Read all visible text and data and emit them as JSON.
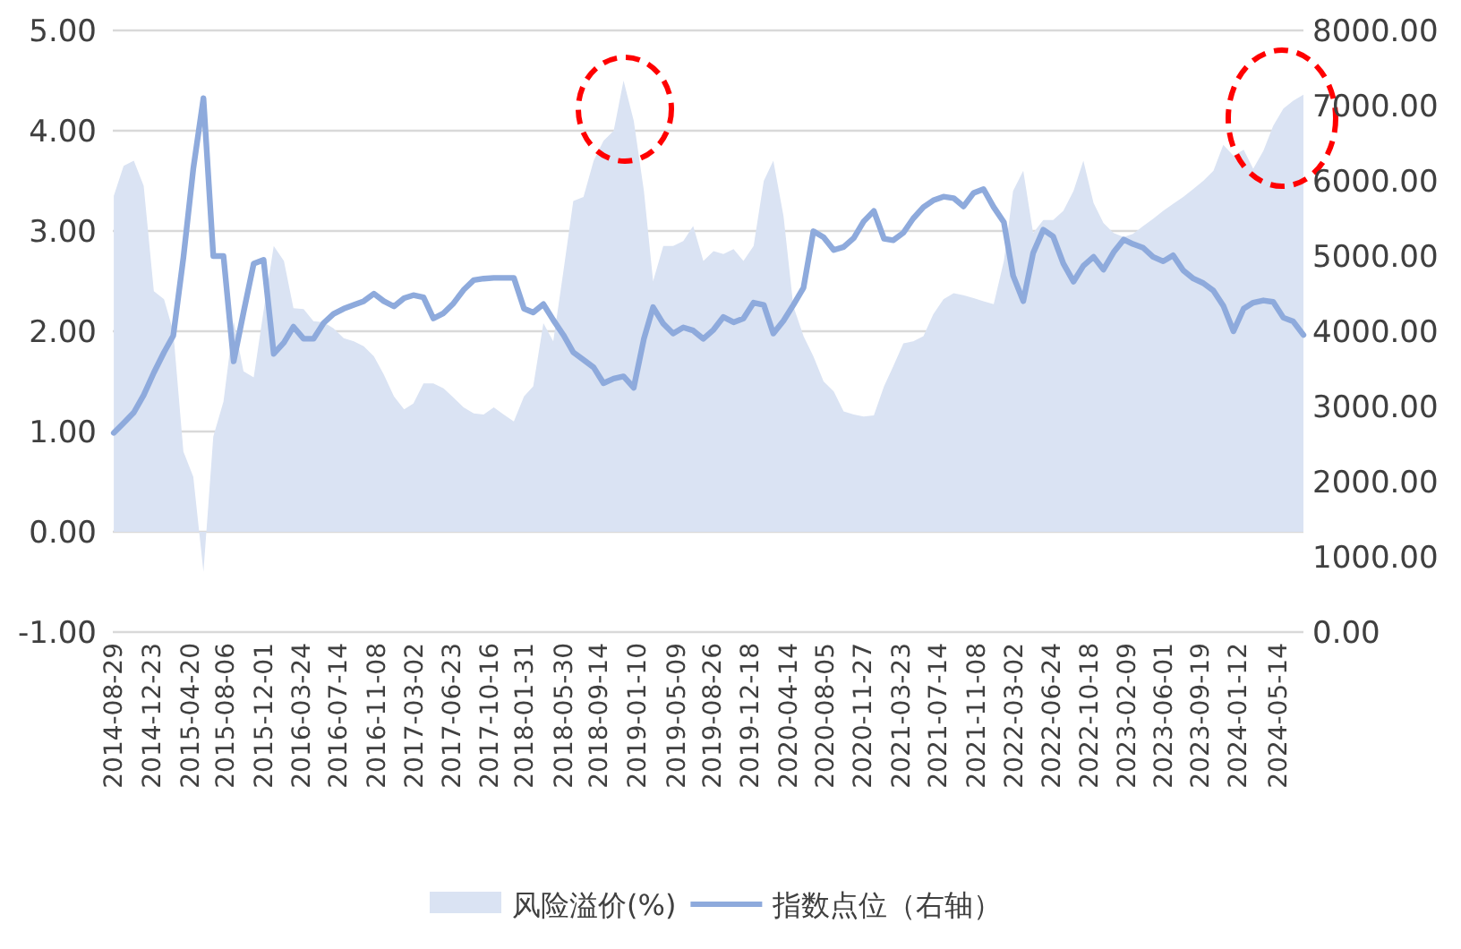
{
  "chart_data": {
    "type": "area",
    "x": [
      "2014-09",
      "2014-10",
      "2014-11",
      "2014-12",
      "2015-01",
      "2015-02",
      "2015-03",
      "2015-04",
      "2015-05",
      "2015-06",
      "2015-07",
      "2015-08",
      "2015-09",
      "2015-10",
      "2015-11",
      "2015-12",
      "2016-01",
      "2016-02",
      "2016-03",
      "2016-04",
      "2016-05",
      "2016-06",
      "2016-07",
      "2016-08",
      "2016-09",
      "2016-10",
      "2016-11",
      "2016-12",
      "2017-01",
      "2017-02",
      "2017-03",
      "2017-04",
      "2017-05",
      "2017-06",
      "2017-07",
      "2017-08",
      "2017-09",
      "2017-10",
      "2017-11",
      "2017-12",
      "2018-01",
      "2018-02",
      "2018-03",
      "2018-04",
      "2018-05",
      "2018-06",
      "2018-07",
      "2018-08",
      "2018-09",
      "2018-10",
      "2018-11",
      "2018-12",
      "2019-01",
      "2019-02",
      "2019-03",
      "2019-04",
      "2019-05",
      "2019-06",
      "2019-07",
      "2019-08",
      "2019-09",
      "2019-10",
      "2019-11",
      "2019-12",
      "2020-01",
      "2020-02",
      "2020-03",
      "2020-04",
      "2020-05",
      "2020-06",
      "2020-07",
      "2020-08",
      "2020-09",
      "2020-10",
      "2020-11",
      "2020-12",
      "2021-01",
      "2021-02",
      "2021-03",
      "2021-04",
      "2021-05",
      "2021-06",
      "2021-07",
      "2021-08",
      "2021-09",
      "2021-10",
      "2021-11",
      "2021-12",
      "2022-01",
      "2022-02",
      "2022-03",
      "2022-04",
      "2022-05",
      "2022-06",
      "2022-07",
      "2022-08",
      "2022-09",
      "2022-10",
      "2022-11",
      "2022-12",
      "2023-01",
      "2023-02",
      "2023-03",
      "2023-04",
      "2023-05",
      "2023-06",
      "2023-07",
      "2023-08",
      "2023-09",
      "2023-10",
      "2023-11",
      "2023-12",
      "2024-01",
      "2024-02",
      "2024-03",
      "2024-04",
      "2024-05",
      "2024-06",
      "2024-07",
      "2024-08"
    ],
    "series": [
      {
        "name": "风险溢价(%)",
        "color": "#dae3f3",
        "values": [
          3.35,
          3.65,
          3.7,
          3.45,
          2.4,
          2.32,
          2.0,
          0.8,
          0.55,
          -0.4,
          0.95,
          1.3,
          2.1,
          1.6,
          1.54,
          2.2,
          2.85,
          2.7,
          2.23,
          2.22,
          2.1,
          2.09,
          2.03,
          1.93,
          1.9,
          1.85,
          1.75,
          1.57,
          1.35,
          1.22,
          1.28,
          1.48,
          1.48,
          1.43,
          1.34,
          1.24,
          1.18,
          1.17,
          1.24,
          1.17,
          1.1,
          1.35,
          1.45,
          2.08,
          1.9,
          2.6,
          3.3,
          3.34,
          3.7,
          3.9,
          4.0,
          4.5,
          4.1,
          3.4,
          2.5,
          2.85,
          2.85,
          2.9,
          3.05,
          2.7,
          2.8,
          2.77,
          2.82,
          2.7,
          2.85,
          3.5,
          3.7,
          3.15,
          2.25,
          1.95,
          1.75,
          1.5,
          1.4,
          1.2,
          1.17,
          1.15,
          1.16,
          1.45,
          1.65,
          1.88,
          1.9,
          1.95,
          2.17,
          2.32,
          2.38,
          2.36,
          2.33,
          2.3,
          2.27,
          2.7,
          3.4,
          3.6,
          2.98,
          3.11,
          3.11,
          3.2,
          3.4,
          3.7,
          3.28,
          3.08,
          2.98,
          2.94,
          2.97,
          3.05,
          3.12,
          3.2,
          3.27,
          3.34,
          3.42,
          3.5,
          3.6,
          3.86,
          3.75,
          3.81,
          3.62,
          3.8,
          4.05,
          4.22,
          4.3,
          4.36
        ]
      },
      {
        "name": "指数点位（右轴）",
        "type": "line",
        "axis": "y2",
        "color": "#8eaadc",
        "values": [
          2650,
          2780,
          2920,
          3150,
          3450,
          3720,
          3940,
          4980,
          6160,
          7100,
          5000,
          5000,
          3600,
          4250,
          4900,
          4950,
          3700,
          3850,
          4060,
          3900,
          3900,
          4110,
          4230,
          4300,
          4350,
          4400,
          4500,
          4400,
          4330,
          4440,
          4480,
          4450,
          4170,
          4240,
          4370,
          4550,
          4680,
          4700,
          4710,
          4710,
          4710,
          4300,
          4250,
          4360,
          4150,
          3950,
          3720,
          3620,
          3520,
          3310,
          3370,
          3400,
          3250,
          3900,
          4320,
          4100,
          3970,
          4050,
          4010,
          3900,
          4020,
          4190,
          4120,
          4170,
          4380,
          4350,
          3970,
          4140,
          4350,
          4580,
          5330,
          5250,
          5080,
          5120,
          5240,
          5460,
          5600,
          5230,
          5210,
          5310,
          5500,
          5650,
          5740,
          5790,
          5770,
          5660,
          5840,
          5890,
          5650,
          5450,
          4740,
          4400,
          5040,
          5350,
          5260,
          4900,
          4660,
          4870,
          4990,
          4820,
          5050,
          5220,
          5160,
          5110,
          4990,
          4930,
          5010,
          4810,
          4700,
          4640,
          4540,
          4340,
          4000,
          4300,
          4380,
          4410,
          4390,
          4180,
          4130,
          3950
        ]
      }
    ],
    "xlim": [
      "2014-08-29",
      "2024-08-01"
    ],
    "xticks": [
      "2014-08-29",
      "2014-12-23",
      "2015-04-20",
      "2015-08-06",
      "2015-12-01",
      "2016-03-24",
      "2016-07-14",
      "2016-11-08",
      "2017-03-02",
      "2017-06-23",
      "2017-10-16",
      "2018-01-31",
      "2018-05-30",
      "2018-09-14",
      "2019-01-10",
      "2019-05-09",
      "2019-08-26",
      "2019-12-18",
      "2020-04-14",
      "2020-08-05",
      "2020-11-27",
      "2021-03-23",
      "2021-07-14",
      "2021-11-08",
      "2022-03-02",
      "2022-06-24",
      "2022-10-18",
      "2023-02-09",
      "2023-06-01",
      "2023-09-19",
      "2024-01-12",
      "2024-05-14"
    ],
    "ylim": [
      -1,
      5
    ],
    "yticks": [
      {
        "value": -1,
        "label": "-1.00"
      },
      {
        "value": 0,
        "label": "0.00"
      },
      {
        "value": 1,
        "label": "1.00"
      },
      {
        "value": 2,
        "label": "2.00"
      },
      {
        "value": 3,
        "label": "3.00"
      },
      {
        "value": 4,
        "label": "4.00"
      },
      {
        "value": 5,
        "label": "5.00"
      }
    ],
    "y2lim": [
      0,
      8000
    ],
    "y2ticks": [
      {
        "value": 0,
        "label": "0.00"
      },
      {
        "value": 1000,
        "label": "1000.00"
      },
      {
        "value": 2000,
        "label": "2000.00"
      },
      {
        "value": 3000,
        "label": "3000.00"
      },
      {
        "value": 4000,
        "label": "4000.00"
      },
      {
        "value": 5000,
        "label": "5000.00"
      },
      {
        "value": 6000,
        "label": "6000.00"
      },
      {
        "value": 7000,
        "label": "7000.00"
      },
      {
        "value": 8000,
        "label": "8000.00"
      }
    ],
    "grid": "y",
    "legend": "bottom"
  }
}
